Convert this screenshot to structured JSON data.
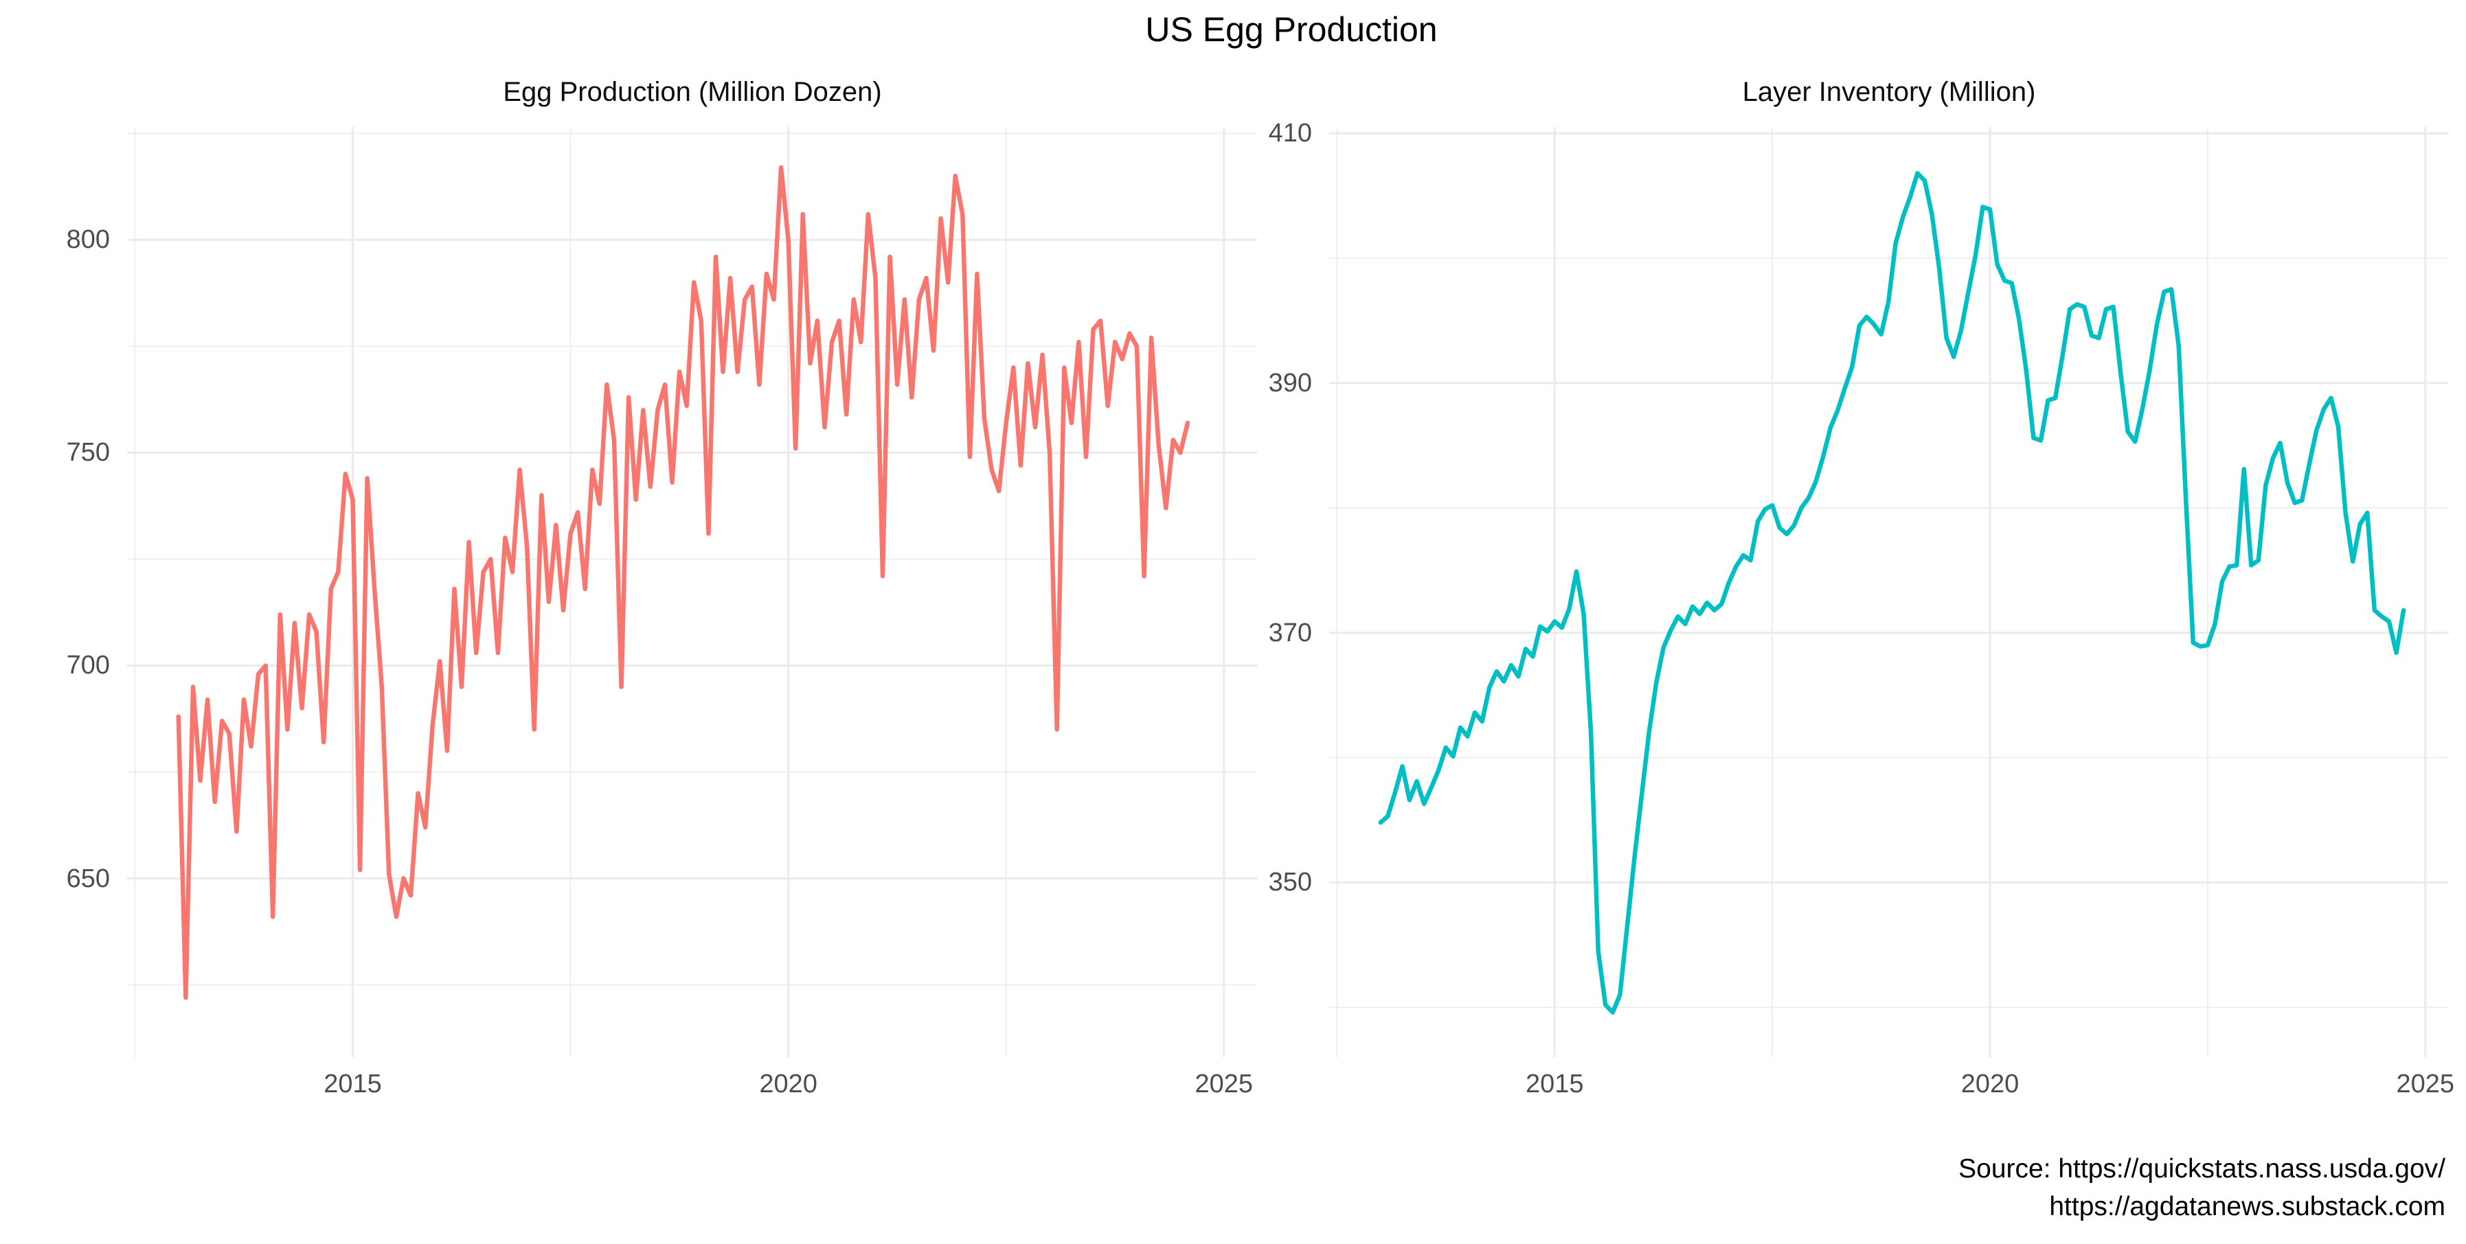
{
  "title": "US Egg Production",
  "source": {
    "line1": "Source: https://quickstats.nass.usda.gov/",
    "line2": "https://agdatanews.substack.com"
  },
  "chart_data": [
    {
      "type": "line",
      "title": "Egg Production (Million Dozen)",
      "series_name": "egg-production",
      "color": "#F8766D",
      "x_start": "2013-01",
      "frequency": "monthly",
      "x_ticks": [
        2015,
        2020,
        2025
      ],
      "x_minor_ticks": [
        2012.5,
        2017.5,
        2022.5
      ],
      "y_ticks": [
        650,
        700,
        750,
        800
      ],
      "y_minor_ticks": [
        625,
        675,
        725,
        775,
        825
      ],
      "xlim": [
        2012.41,
        2025.38
      ],
      "ylim": [
        608,
        826.5
      ],
      "grid": true,
      "legend": "none",
      "values": [
        688,
        622,
        695,
        673,
        692,
        668,
        687,
        684,
        661,
        692,
        681,
        698,
        700,
        641,
        712,
        685,
        710,
        690,
        712,
        708,
        682,
        718,
        722,
        745,
        739,
        652,
        744,
        718,
        695,
        651,
        641,
        650,
        646,
        670,
        662,
        686,
        701,
        680,
        718,
        695,
        729,
        703,
        722,
        725,
        703,
        730,
        722,
        746,
        728,
        685,
        740,
        715,
        733,
        713,
        731,
        736,
        718,
        746,
        738,
        766,
        753,
        695,
        763,
        739,
        760,
        742,
        760,
        766,
        743,
        769,
        761,
        790,
        781,
        731,
        796,
        769,
        791,
        769,
        786,
        789,
        766,
        792,
        786,
        817,
        800,
        751,
        806,
        771,
        781,
        756,
        776,
        781,
        759,
        786,
        776,
        806,
        791,
        721,
        796,
        766,
        786,
        763,
        786,
        791,
        774,
        805,
        790,
        815,
        806,
        749,
        792,
        758,
        746,
        741,
        757,
        770,
        747,
        771,
        756,
        773,
        750,
        685,
        770,
        757,
        776,
        749,
        779,
        781,
        761,
        776,
        772,
        778,
        775,
        721,
        777,
        752,
        737,
        753,
        750,
        757
      ]
    },
    {
      "type": "line",
      "title": "Layer Inventory (Million)",
      "series_name": "layer-inventory",
      "color": "#00BFC4",
      "x_start": "2013-01",
      "frequency": "monthly",
      "x_ticks": [
        2015,
        2020,
        2025
      ],
      "x_minor_ticks": [
        2012.5,
        2017.5,
        2022.5
      ],
      "y_ticks": [
        350,
        370,
        390,
        410
      ],
      "y_minor_ticks": [
        340,
        360,
        380,
        400
      ],
      "xlim": [
        2012.41,
        2025.27
      ],
      "ylim": [
        336,
        410.5
      ],
      "grid": true,
      "legend": "none",
      "values": [
        354.8,
        355.3,
        357.2,
        359.3,
        356.6,
        358.1,
        356.3,
        357.6,
        359.0,
        360.8,
        360.1,
        362.4,
        361.7,
        363.6,
        362.9,
        365.6,
        366.9,
        366.1,
        367.4,
        366.5,
        368.7,
        368.1,
        370.5,
        370.1,
        370.9,
        370.4,
        371.9,
        374.9,
        371.5,
        362.0,
        344.5,
        340.2,
        339.6,
        341.0,
        346.5,
        352.0,
        357.0,
        362.0,
        366.0,
        368.8,
        370.2,
        371.3,
        370.7,
        372.1,
        371.5,
        372.4,
        371.8,
        372.3,
        374.0,
        375.3,
        376.2,
        375.8,
        378.9,
        379.9,
        380.2,
        378.4,
        377.9,
        378.6,
        380.0,
        380.8,
        382.1,
        384.1,
        386.4,
        387.8,
        389.6,
        391.3,
        394.6,
        395.3,
        394.7,
        393.9,
        396.5,
        401.2,
        403.3,
        404.9,
        406.8,
        406.2,
        403.5,
        399.2,
        393.6,
        392.1,
        394.2,
        397.2,
        400.2,
        404.1,
        403.9,
        399.5,
        398.2,
        398.0,
        395.1,
        391.0,
        385.6,
        385.4,
        388.6,
        388.8,
        392.2,
        395.9,
        396.3,
        396.1,
        393.8,
        393.6,
        395.9,
        396.1,
        390.8,
        386.1,
        385.3,
        387.9,
        391.0,
        394.7,
        397.3,
        397.5,
        393.0,
        380.7,
        369.2,
        368.9,
        369.0,
        370.7,
        374.1,
        375.3,
        375.4,
        383.1,
        375.4,
        375.8,
        381.8,
        384.0,
        385.2,
        382.0,
        380.4,
        380.6,
        383.5,
        386.2,
        387.9,
        388.8,
        386.5,
        379.6,
        375.7,
        378.7,
        379.6,
        371.8,
        371.3,
        370.9,
        368.4,
        371.8
      ]
    }
  ],
  "style": {
    "grid_color": "#EBEBEB",
    "axis_text_color": "#4d4d4d",
    "background": "#ffffff"
  }
}
